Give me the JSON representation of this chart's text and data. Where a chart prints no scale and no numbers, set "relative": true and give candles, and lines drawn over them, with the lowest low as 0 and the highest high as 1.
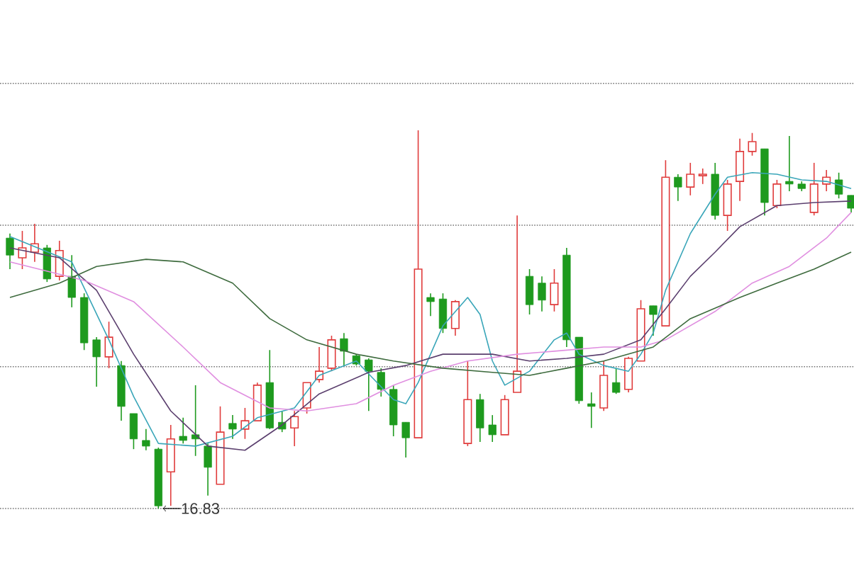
{
  "chart_data": {
    "type": "candlestick",
    "relative": true,
    "categories": [
      null,
      null,
      null,
      null,
      null,
      null,
      null,
      null,
      null,
      null,
      null,
      null,
      null,
      null,
      null,
      null,
      null,
      null,
      null,
      null,
      null,
      null,
      null,
      null,
      null,
      null,
      null,
      null,
      null,
      null,
      null,
      null,
      null,
      null,
      null,
      null,
      null,
      null,
      null,
      null,
      null,
      null,
      null,
      null,
      null,
      null,
      null,
      null,
      null,
      null,
      null,
      null,
      null,
      null,
      null,
      null,
      null,
      null,
      null,
      null,
      null,
      null,
      null,
      null,
      null,
      null,
      null,
      null,
      null
    ],
    "ohlc": [
      [
        0.715,
        0.727,
        0.633,
        0.67
      ],
      [
        0.663,
        0.734,
        0.633,
        0.689
      ],
      [
        0.678,
        0.753,
        0.652,
        0.7
      ],
      [
        0.689,
        0.697,
        0.599,
        0.607
      ],
      [
        0.614,
        0.708,
        0.603,
        0.682
      ],
      [
        0.614,
        0.67,
        0.532,
        0.558
      ],
      [
        0.558,
        0.569,
        0.419,
        0.438
      ],
      [
        0.446,
        0.453,
        0.322,
        0.401
      ],
      [
        0.401,
        0.494,
        0.371,
        0.453
      ],
      [
        0.378,
        0.39,
        0.232,
        0.27
      ],
      [
        0.251,
        0.251,
        0.157,
        0.184
      ],
      [
        0.18,
        0.21,
        0.154,
        0.165
      ],
      [
        0.157,
        0.161,
        0,
        0.007
      ],
      [
        0.097,
        0.221,
        0.007,
        0.184
      ],
      [
        0.191,
        0.24,
        0.172,
        0.18
      ],
      [
        0.195,
        0.326,
        0.139,
        0.184
      ],
      [
        0.165,
        0.172,
        0.034,
        0.109
      ],
      [
        0.064,
        0.27,
        0.064,
        0.202
      ],
      [
        0.225,
        0.247,
        0.184,
        0.21
      ],
      [
        0.21,
        0.266,
        0.184,
        0.232
      ],
      [
        0.232,
        0.333,
        0.232,
        0.326
      ],
      [
        0.333,
        0.419,
        0.21,
        0.213
      ],
      [
        0.228,
        0.258,
        0.202,
        0.21
      ],
      [
        0.213,
        0.258,
        0.165,
        0.243
      ],
      [
        0.266,
        0.333,
        0.251,
        0.333
      ],
      [
        0.341,
        0.427,
        0.333,
        0.363
      ],
      [
        0.371,
        0.457,
        0.363,
        0.446
      ],
      [
        0.449,
        0.464,
        0.378,
        0.416
      ],
      [
        0.404,
        0.408,
        0.378,
        0.382
      ],
      [
        0.393,
        0.397,
        0.258,
        0.363
      ],
      [
        0.36,
        0.371,
        0.296,
        0.315
      ],
      [
        0.315,
        0.326,
        0.191,
        0.221
      ],
      [
        0.228,
        0.228,
        0.135,
        0.187
      ],
      [
        0.187,
        1,
        0.187,
        0.633
      ],
      [
        0.558,
        0.569,
        0.509,
        0.547
      ],
      [
        0.554,
        0.569,
        0.464,
        0.476
      ],
      [
        0.476,
        0.551,
        0.457,
        0.547
      ],
      [
        0.172,
        0.39,
        0.165,
        0.288
      ],
      [
        0.288,
        0.303,
        0.176,
        0.213
      ],
      [
        0.221,
        0.247,
        0.176,
        0.195
      ],
      [
        0.195,
        0.3,
        0.195,
        0.288
      ],
      [
        0.307,
        0.775,
        0.307,
        0.363
      ],
      [
        0.614,
        0.633,
        0.513,
        0.539
      ],
      [
        0.596,
        0.614,
        0.521,
        0.551
      ],
      [
        0.539,
        0.633,
        0.521,
        0.596
      ],
      [
        0.67,
        0.689,
        0.427,
        0.446
      ],
      [
        0.453,
        0.453,
        0.277,
        0.285
      ],
      [
        0.277,
        0.307,
        0.213,
        0.27
      ],
      [
        0.266,
        0.39,
        0.258,
        0.352
      ],
      [
        0.333,
        0.371,
        0.303,
        0.307
      ],
      [
        0.315,
        0.401,
        0.307,
        0.397
      ],
      [
        0.39,
        0.551,
        0.39,
        0.528
      ],
      [
        0.536,
        0.536,
        0.457,
        0.513
      ],
      [
        0.483,
        0.921,
        0.483,
        0.876
      ],
      [
        0.876,
        0.884,
        0.813,
        0.85
      ],
      [
        0.85,
        0.914,
        0.828,
        0.884
      ],
      [
        0.88,
        0.899,
        0.858,
        0.884
      ],
      [
        0.884,
        0.914,
        0.764,
        0.775
      ],
      [
        0.775,
        0.869,
        0.734,
        0.858
      ],
      [
        0.865,
        0.978,
        0.813,
        0.944
      ],
      [
        0.944,
        0.993,
        0.933,
        0.97
      ],
      [
        0.951,
        0.951,
        0.775,
        0.809
      ],
      [
        0.801,
        0.869,
        0.794,
        0.858
      ],
      [
        0.865,
        0.985,
        0.839,
        0.858
      ],
      [
        0.858,
        0.865,
        0.839,
        0.846
      ],
      [
        0.783,
        0.914,
        0.775,
        0.858
      ],
      [
        0.858,
        0.895,
        0.839,
        0.876
      ],
      [
        0.869,
        0.888,
        0.82,
        0.831
      ],
      [
        0.828,
        0.828,
        0.783,
        0.794
      ]
    ],
    "colors": [
      "#1e9a1e",
      "#e03c3c",
      "#e03c3c",
      "#1e9a1e",
      "#e03c3c",
      "#1e9a1e",
      "#1e9a1e",
      "#1e9a1e",
      "#e03c3c",
      "#1e9a1e",
      "#1e9a1e",
      "#1e9a1e",
      "#1e9a1e",
      "#e03c3c",
      "#1e9a1e",
      "#1e9a1e",
      "#1e9a1e",
      "#e03c3c",
      "#1e9a1e",
      "#e03c3c",
      "#e03c3c",
      "#1e9a1e",
      "#1e9a1e",
      "#e03c3c",
      "#e03c3c",
      "#e03c3c",
      "#e03c3c",
      "#1e9a1e",
      "#1e9a1e",
      "#1e9a1e",
      "#1e9a1e",
      "#1e9a1e",
      "#1e9a1e",
      "#e03c3c",
      "#1e9a1e",
      "#1e9a1e",
      "#e03c3c",
      "#e03c3c",
      "#1e9a1e",
      "#1e9a1e",
      "#e03c3c",
      "#e03c3c",
      "#1e9a1e",
      "#1e9a1e",
      "#e03c3c",
      "#1e9a1e",
      "#1e9a1e",
      "#1e9a1e",
      "#e03c3c",
      "#1e9a1e",
      "#e03c3c",
      "#e03c3c",
      "#1e9a1e",
      "#e03c3c",
      "#1e9a1e",
      "#e03c3c",
      "#e03c3c",
      "#1e9a1e",
      "#e03c3c",
      "#e03c3c",
      "#e03c3c",
      "#1e9a1e",
      "#e03c3c",
      "#1e9a1e",
      "#1e9a1e",
      "#e03c3c",
      "#e03c3c",
      "#1e9a1e",
      "#1e9a1e"
    ],
    "series": [
      {
        "type": "line",
        "color": "#3aa6b9",
        "values": [
          0.719,
          null,
          null,
          null,
          null,
          0.652,
          null,
          null,
          0.446,
          null,
          0.296,
          null,
          0.172,
          null,
          null,
          0.165,
          null,
          null,
          0.191,
          null,
          0.24,
          null,
          null,
          0.266,
          null,
          0.352,
          null,
          null,
          0.39,
          null,
          null,
          0.288,
          0.277,
          0.333,
          null,
          0.483,
          null,
          0.558,
          0.513,
          0.39,
          0.326,
          null,
          0.363,
          null,
          0.446,
          0.464,
          0.408,
          null,
          0.378,
          null,
          0.363,
          0.408,
          0.464,
          0.577,
          null,
          0.727,
          null,
          0.831,
          0.876,
          null,
          0.888,
          null,
          0.884,
          null,
          0.869,
          null,
          0.865,
          null,
          0.846
        ]
      },
      {
        "type": "line",
        "color": "#5b3f6e",
        "values": [
          0.689,
          null,
          null,
          null,
          0.663,
          null,
          null,
          0.577,
          null,
          null,
          0.408,
          null,
          null,
          0.258,
          null,
          null,
          0.165,
          null,
          null,
          0.154,
          null,
          null,
          0.221,
          null,
          null,
          0.303,
          null,
          null,
          null,
          0.36,
          null,
          null,
          0.378,
          null,
          null,
          0.408,
          null,
          null,
          null,
          0.408,
          null,
          null,
          0.39,
          null,
          null,
          0.397,
          null,
          null,
          0.408,
          null,
          null,
          0.446,
          null,
          0.528,
          null,
          0.614,
          null,
          0.678,
          null,
          0.745,
          null,
          null,
          0.801,
          null,
          null,
          0.809,
          null,
          null,
          0.813
        ]
      },
      {
        "type": "line",
        "color": "#e08fe0",
        "values": [
          0.652,
          null,
          null,
          null,
          null,
          null,
          0.603,
          null,
          null,
          null,
          0.547,
          null,
          null,
          null,
          0.427,
          null,
          null,
          0.333,
          null,
          null,
          null,
          0.266,
          null,
          null,
          0.258,
          null,
          null,
          null,
          0.277,
          null,
          null,
          0.326,
          null,
          null,
          0.363,
          null,
          null,
          0.39,
          null,
          null,
          null,
          0.408,
          null,
          null,
          0.416,
          null,
          null,
          null,
          0.427,
          null,
          null,
          0.427,
          null,
          0.446,
          null,
          null,
          null,
          0.521,
          null,
          null,
          0.596,
          null,
          null,
          0.64,
          null,
          null,
          0.715,
          null,
          0.783
        ]
      },
      {
        "type": "line",
        "color": "#3e6b3e",
        "values": [
          0.558,
          null,
          null,
          null,
          0.596,
          null,
          null,
          0.64,
          null,
          null,
          null,
          0.659,
          null,
          null,
          0.652,
          null,
          null,
          null,
          0.596,
          null,
          null,
          0.502,
          null,
          null,
          0.446,
          null,
          null,
          null,
          0.408,
          null,
          null,
          0.39,
          null,
          null,
          null,
          0.371,
          null,
          null,
          null,
          0.36,
          null,
          null,
          0.352,
          null,
          null,
          0.371,
          null,
          null,
          0.39,
          null,
          null,
          null,
          0.427,
          null,
          null,
          0.502,
          null,
          null,
          null,
          0.558,
          null,
          null,
          0.596,
          null,
          null,
          0.633,
          null,
          null,
          0.678
        ]
      }
    ],
    "ref_lines": [
      {
        "axis": "y",
        "value": 0,
        "color": "#737373",
        "line_style": "dotted"
      },
      {
        "axis": "y",
        "value": 0.375,
        "color": "#737373",
        "line_style": "dotted"
      },
      {
        "axis": "y",
        "value": 0.749,
        "color": "#737373",
        "line_style": "dotted"
      },
      {
        "axis": "y",
        "value": 1.124,
        "color": "#737373",
        "line_style": "dotted"
      }
    ],
    "annotations": [
      "16.83"
    ]
  }
}
